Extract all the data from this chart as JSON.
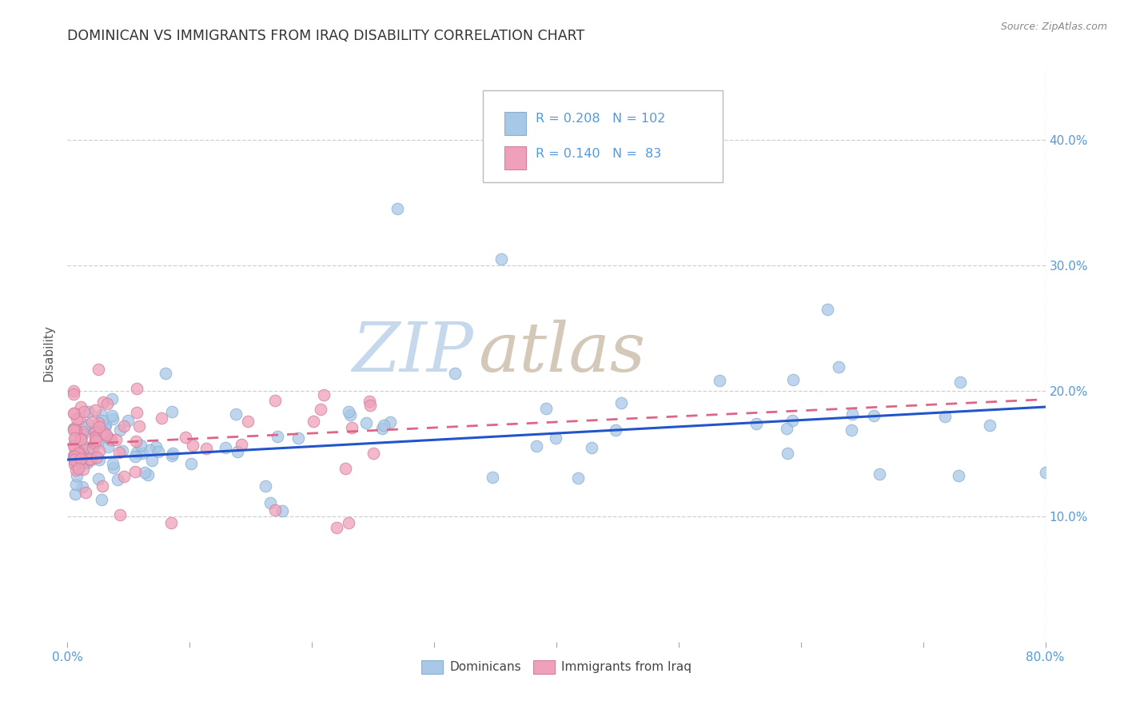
{
  "title": "DOMINICAN VS IMMIGRANTS FROM IRAQ DISABILITY CORRELATION CHART",
  "source_text": "Source: ZipAtlas.com",
  "ylabel": "Disability",
  "xlim": [
    0.0,
    0.8
  ],
  "ylim": [
    0.0,
    0.46
  ],
  "background_color": "#ffffff",
  "grid_color": "#d0d0d0",
  "dominican_color": "#a8c8e8",
  "iraq_color": "#f0a0b8",
  "trend_dominican_color": "#2255cc",
  "trend_iraq_color": "#dd6688",
  "title_color": "#333333",
  "axis_color": "#5599dd",
  "source_color": "#888888"
}
